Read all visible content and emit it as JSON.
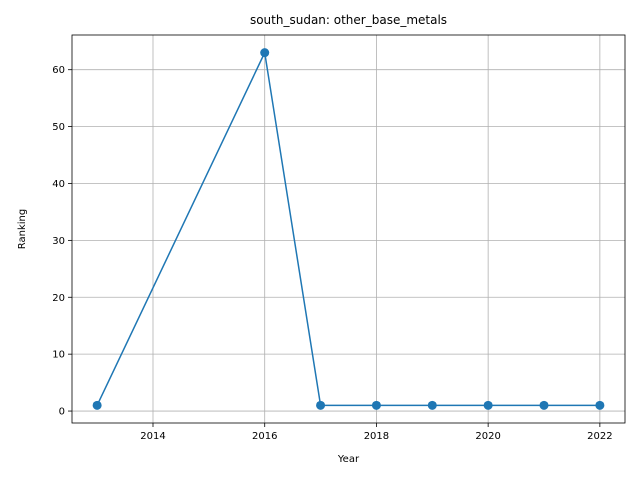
{
  "chart_data": {
    "type": "line",
    "title": "south_sudan: other_base_metals",
    "xlabel": "Year",
    "ylabel": "Ranking",
    "xlim": [
      2012.55,
      2022.45
    ],
    "ylim": [
      -2.1,
      66.1
    ],
    "xticks": [
      2014,
      2016,
      2018,
      2020,
      2022
    ],
    "yticks": [
      0,
      10,
      20,
      30,
      40,
      50,
      60
    ],
    "grid": true,
    "series": [
      {
        "color": "#1f77b4",
        "marker": "circle",
        "points": [
          {
            "x": 2013,
            "y": 1
          },
          {
            "x": 2016,
            "y": 63
          },
          {
            "x": 2017,
            "y": 1
          },
          {
            "x": 2018,
            "y": 1
          },
          {
            "x": 2019,
            "y": 1
          },
          {
            "x": 2020,
            "y": 1
          },
          {
            "x": 2021,
            "y": 1
          },
          {
            "x": 2022,
            "y": 1
          }
        ]
      }
    ]
  }
}
